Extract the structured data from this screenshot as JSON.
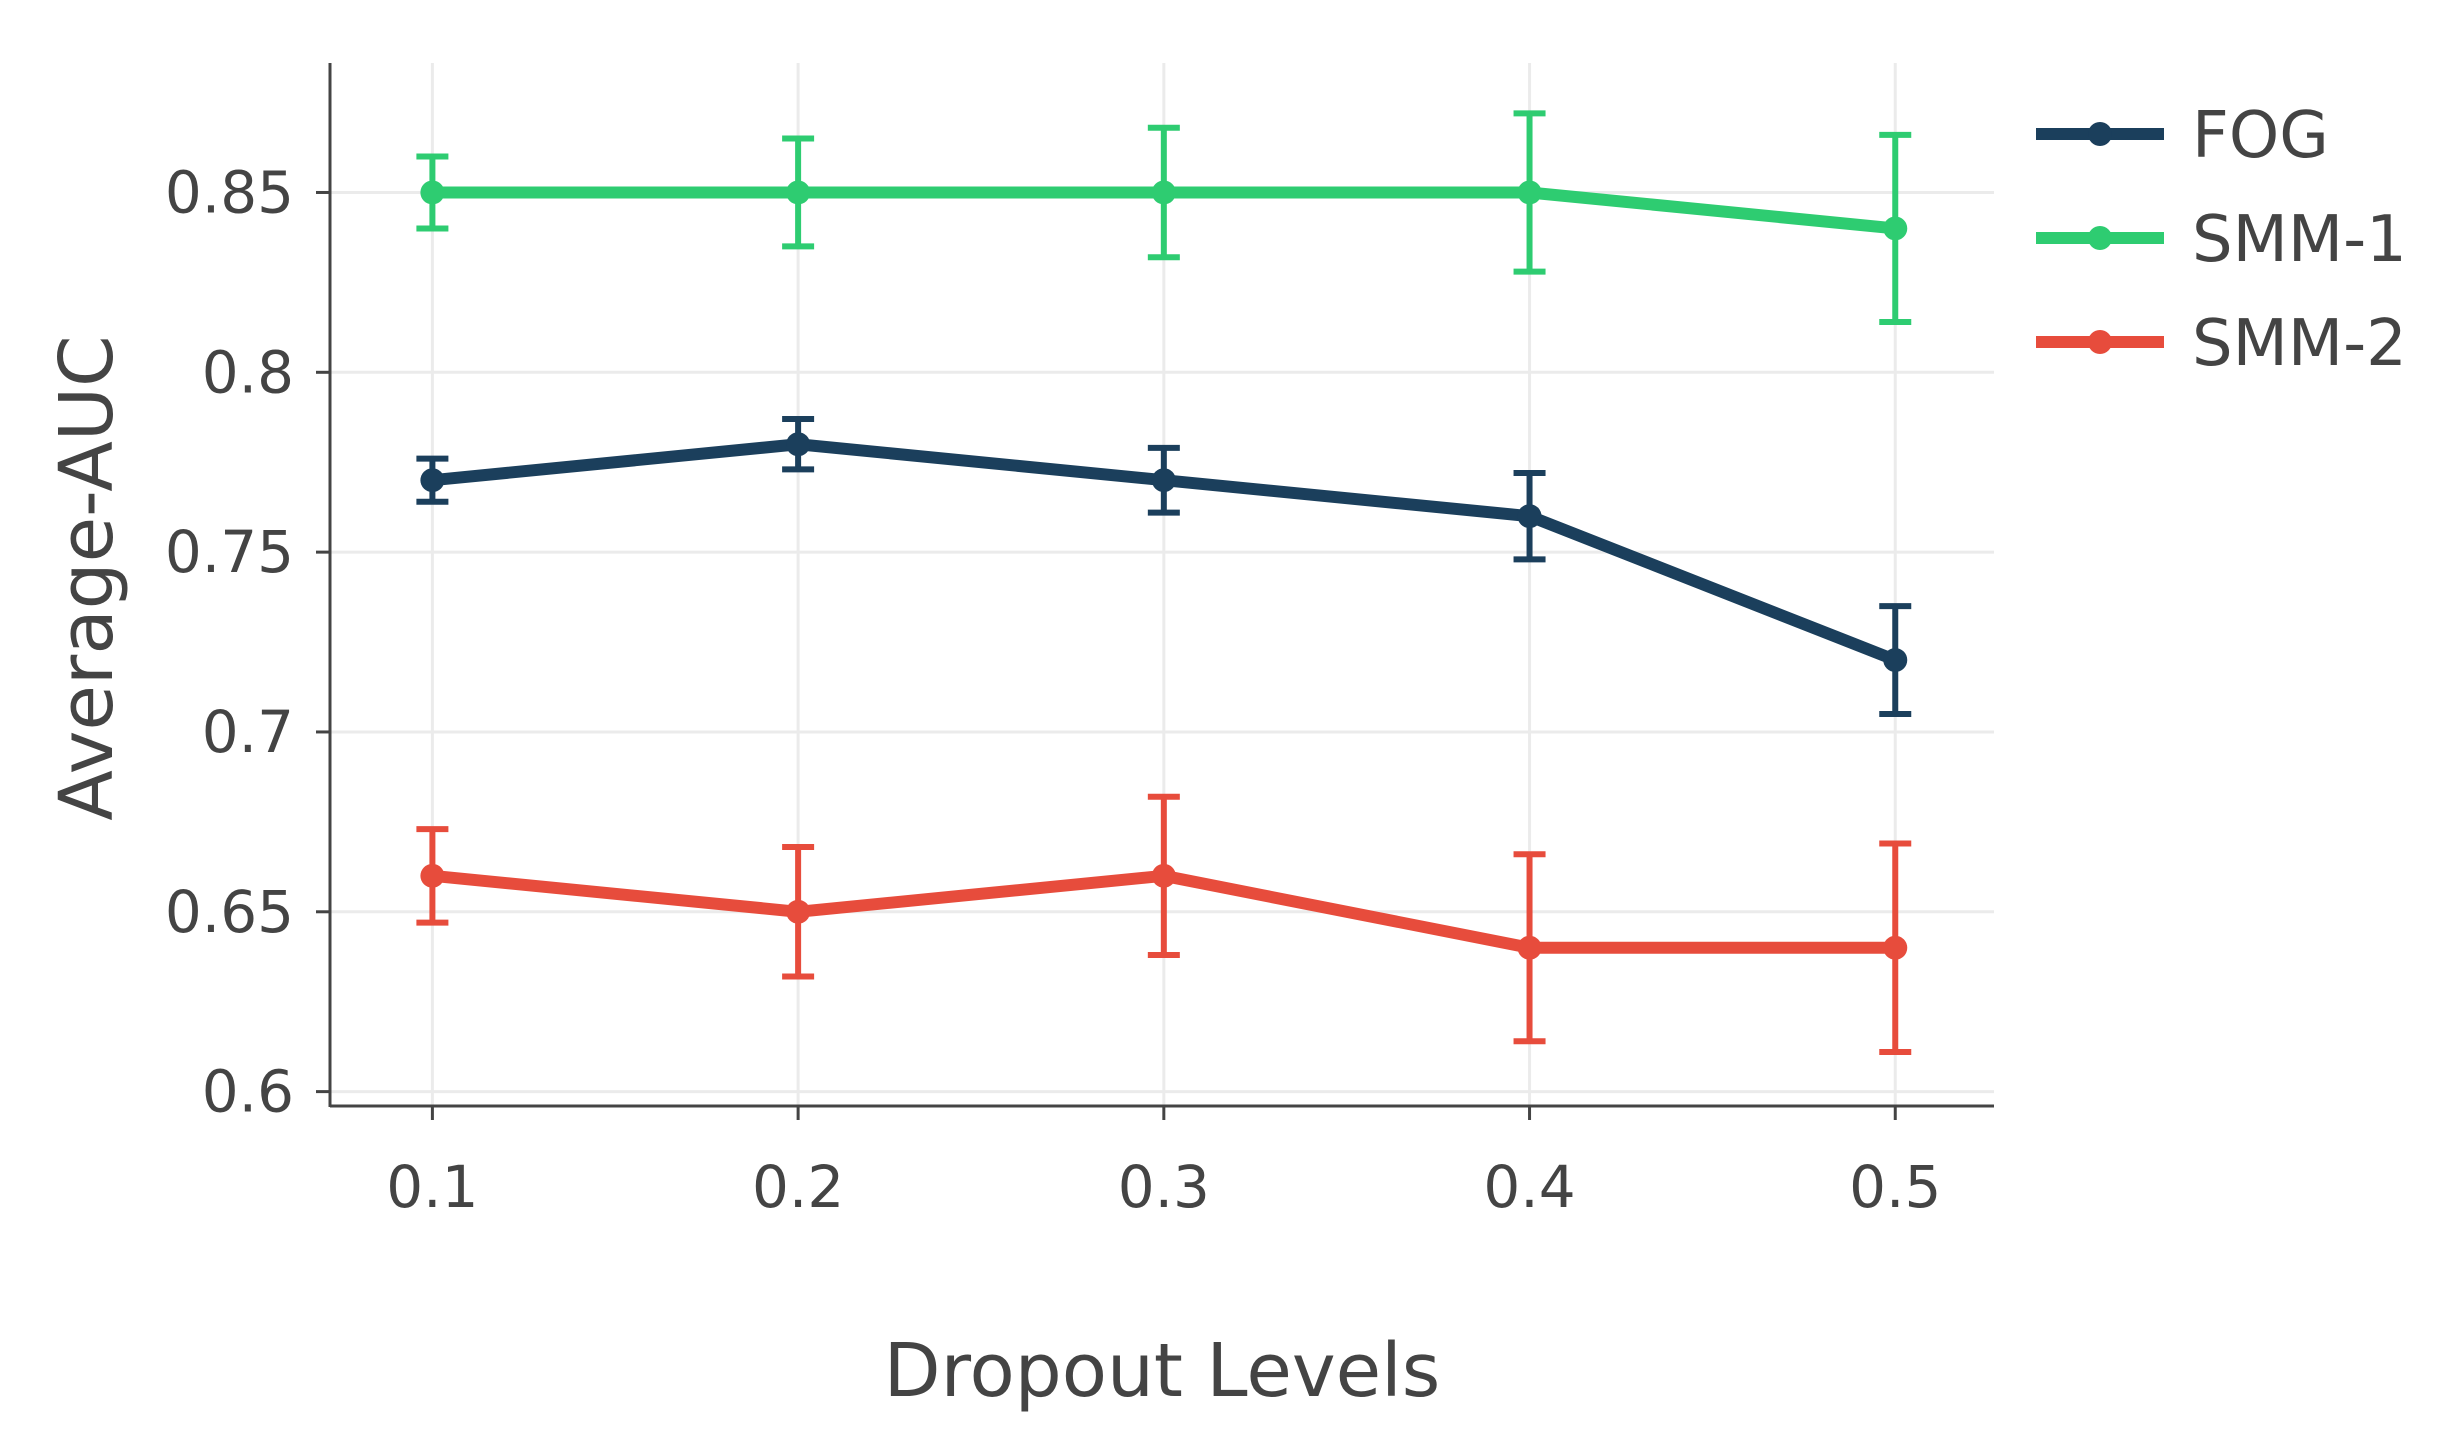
{
  "chart_data": {
    "type": "line",
    "title": "",
    "xlabel": "Dropout Levels",
    "ylabel": "Average-AUC",
    "x": [
      0.1,
      0.2,
      0.3,
      0.4,
      0.5
    ],
    "x_tick_labels": [
      "0.1",
      "0.2",
      "0.3",
      "0.4",
      "0.5"
    ],
    "y_ticks": [
      0.6,
      0.65,
      0.7,
      0.75,
      0.8,
      0.85
    ],
    "y_tick_labels": [
      "0.6",
      "0.65",
      "0.7",
      "0.75",
      "0.8",
      "0.85"
    ],
    "ylim": [
      0.596,
      0.886
    ],
    "xlim": [
      0.072,
      0.527
    ],
    "grid": true,
    "legend_position": "top-right",
    "series": [
      {
        "name": "FOG",
        "color": "#1b3f5c",
        "values": [
          0.77,
          0.78,
          0.77,
          0.76,
          0.72
        ],
        "error_low": [
          0.764,
          0.773,
          0.761,
          0.748,
          0.705
        ],
        "error_high": [
          0.776,
          0.787,
          0.779,
          0.772,
          0.735
        ]
      },
      {
        "name": "SMM-1",
        "color": "#2ecc71",
        "values": [
          0.85,
          0.85,
          0.85,
          0.85,
          0.84
        ],
        "error_low": [
          0.84,
          0.835,
          0.832,
          0.828,
          0.814
        ],
        "error_high": [
          0.86,
          0.865,
          0.868,
          0.872,
          0.866
        ]
      },
      {
        "name": "SMM-2",
        "color": "#e74c3c",
        "values": [
          0.66,
          0.65,
          0.66,
          0.64,
          0.64
        ],
        "error_low": [
          0.647,
          0.632,
          0.638,
          0.614,
          0.611
        ],
        "error_high": [
          0.673,
          0.668,
          0.682,
          0.666,
          0.669
        ]
      }
    ]
  }
}
